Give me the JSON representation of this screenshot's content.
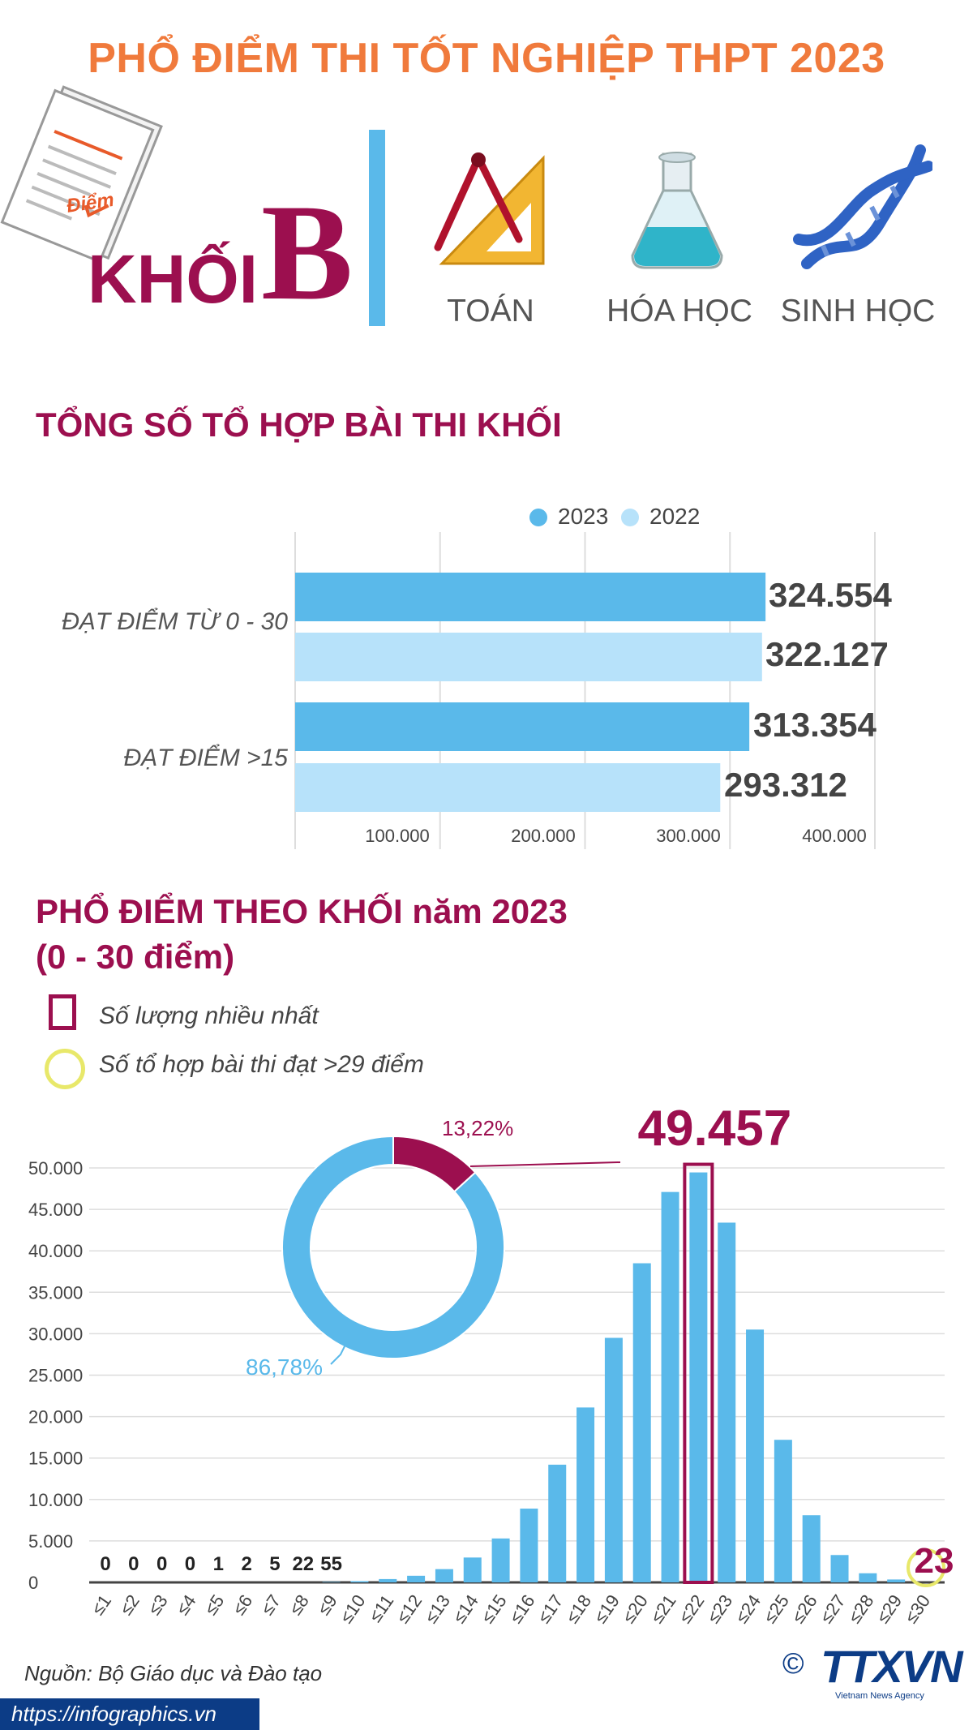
{
  "header": {
    "title": "PHỔ ĐIỂM THI TỐT NGHIỆP THPT 2023",
    "paper_label": "Điểm",
    "khoi_word": "KHỐI",
    "khoi_letter": "B",
    "subjects": [
      "TOÁN",
      "HÓA HỌC",
      "SINH HỌC"
    ]
  },
  "section1": {
    "title": "TỔNG SỐ TỔ HỢP BÀI THI KHỐI"
  },
  "section2": {
    "title_line1": "PHỔ ĐIỂM THEO KHỐI năm 2023",
    "title_line2": "(0 - 30 điểm)",
    "legend_max": "Số lượng nhiều nhất",
    "legend_top": "Số tổ hợp bài thi đạt >29 điểm"
  },
  "footer": {
    "source": "Nguồn: Bộ Giáo dục và Đào tạo",
    "url": "https://infographics.vn",
    "logo": "TTXVN",
    "logo_sub": "Vietnam News Agency",
    "copyright": "©"
  },
  "colors": {
    "orange": "#f07a3c",
    "maroon": "#9c0f4f",
    "blue_2023": "#5ab9ea",
    "blue_2022": "#b7e2fa",
    "yellow": "#e8e86a"
  },
  "chart_data": [
    {
      "type": "bar",
      "orientation": "horizontal",
      "categories": [
        "ĐẠT ĐIỂM TỪ 0 - 30",
        "ĐẠT ĐIỂM >15"
      ],
      "series": [
        {
          "name": "2023",
          "values": [
            324554,
            313354
          ],
          "labels": [
            "324.554",
            "313.354"
          ]
        },
        {
          "name": "2022",
          "values": [
            322127,
            293312
          ],
          "labels": [
            "322.127",
            "293.312"
          ]
        }
      ],
      "xticks": [
        "100.000",
        "200.000",
        "300.000",
        "400.000"
      ],
      "xlim": [
        0,
        400000
      ],
      "grid": true,
      "legend": "top"
    },
    {
      "type": "pie",
      "variant": "donut",
      "slices": [
        {
          "label": "13,22%",
          "value": 13.22
        },
        {
          "label": "86,78%",
          "value": 86.78
        }
      ]
    },
    {
      "type": "bar",
      "categories": [
        "≤1",
        "≤2",
        "≤3",
        "≤4",
        "≤5",
        "≤6",
        "≤7",
        "≤8",
        "≤9",
        "≤10",
        "≤11",
        "≤12",
        "≤13",
        "≤14",
        "≤15",
        "≤16",
        "≤17",
        "≤18",
        "≤19",
        "≤20",
        "≤21",
        "≤22",
        "≤23",
        "≤24",
        "≤25",
        "≤26",
        "≤27",
        "≤28",
        "≤29",
        "≤30"
      ],
      "values": [
        0,
        0,
        0,
        0,
        1,
        2,
        5,
        22,
        55,
        150,
        400,
        800,
        1600,
        3000,
        5300,
        8900,
        14200,
        21100,
        29500,
        38500,
        47100,
        49457,
        43400,
        30500,
        17200,
        8100,
        3300,
        1100,
        350,
        23
      ],
      "printed_labels": [
        "0",
        "0",
        "0",
        "0",
        "1",
        "2",
        "5",
        "22",
        "55"
      ],
      "yticks": [
        "0",
        "5.000",
        "10.000",
        "15.000",
        "20.000",
        "25.000",
        "30.000",
        "35.000",
        "40.000",
        "45.000",
        "50.000"
      ],
      "ylim": [
        0,
        50000
      ],
      "highlight_max": {
        "category": "≤22",
        "label": "49.457"
      },
      "highlight_top": {
        "category": "≤30",
        "label": "23"
      },
      "grid": true
    }
  ]
}
